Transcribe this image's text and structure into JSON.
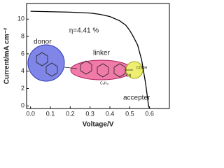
{
  "chart_data": {
    "type": "line",
    "x_label": "Voltage/V",
    "y_label": "Current/mA cm⁻²",
    "annotations": [
      "η=4.41 %",
      "donor",
      "linker",
      "accepter",
      "COOH",
      "CN",
      "C₈H₁₇"
    ],
    "x": [
      0,
      0.1,
      0.2,
      0.3,
      0.35,
      0.4,
      0.45,
      0.48,
      0.5,
      0.52,
      0.54,
      0.56,
      0.58,
      0.595,
      0.6
    ],
    "series": [
      {
        "color": "#000000",
        "values": [
          10.9,
          10.85,
          10.8,
          10.7,
          10.55,
          10.3,
          9.8,
          9.3,
          8.7,
          7.9,
          7.0,
          5.3,
          2.6,
          0.0,
          -0.3
        ]
      }
    ],
    "xlim": [
      -0.02,
      0.7
    ],
    "xticks": [
      {
        "value": 0,
        "label": "0.0"
      },
      0.1,
      0.2,
      0.3,
      0.4,
      0.5,
      0.6
    ],
    "ylim": [
      -0.3,
      11.8
    ],
    "yticks": [
      0,
      2,
      4,
      6,
      8,
      10
    ]
  }
}
